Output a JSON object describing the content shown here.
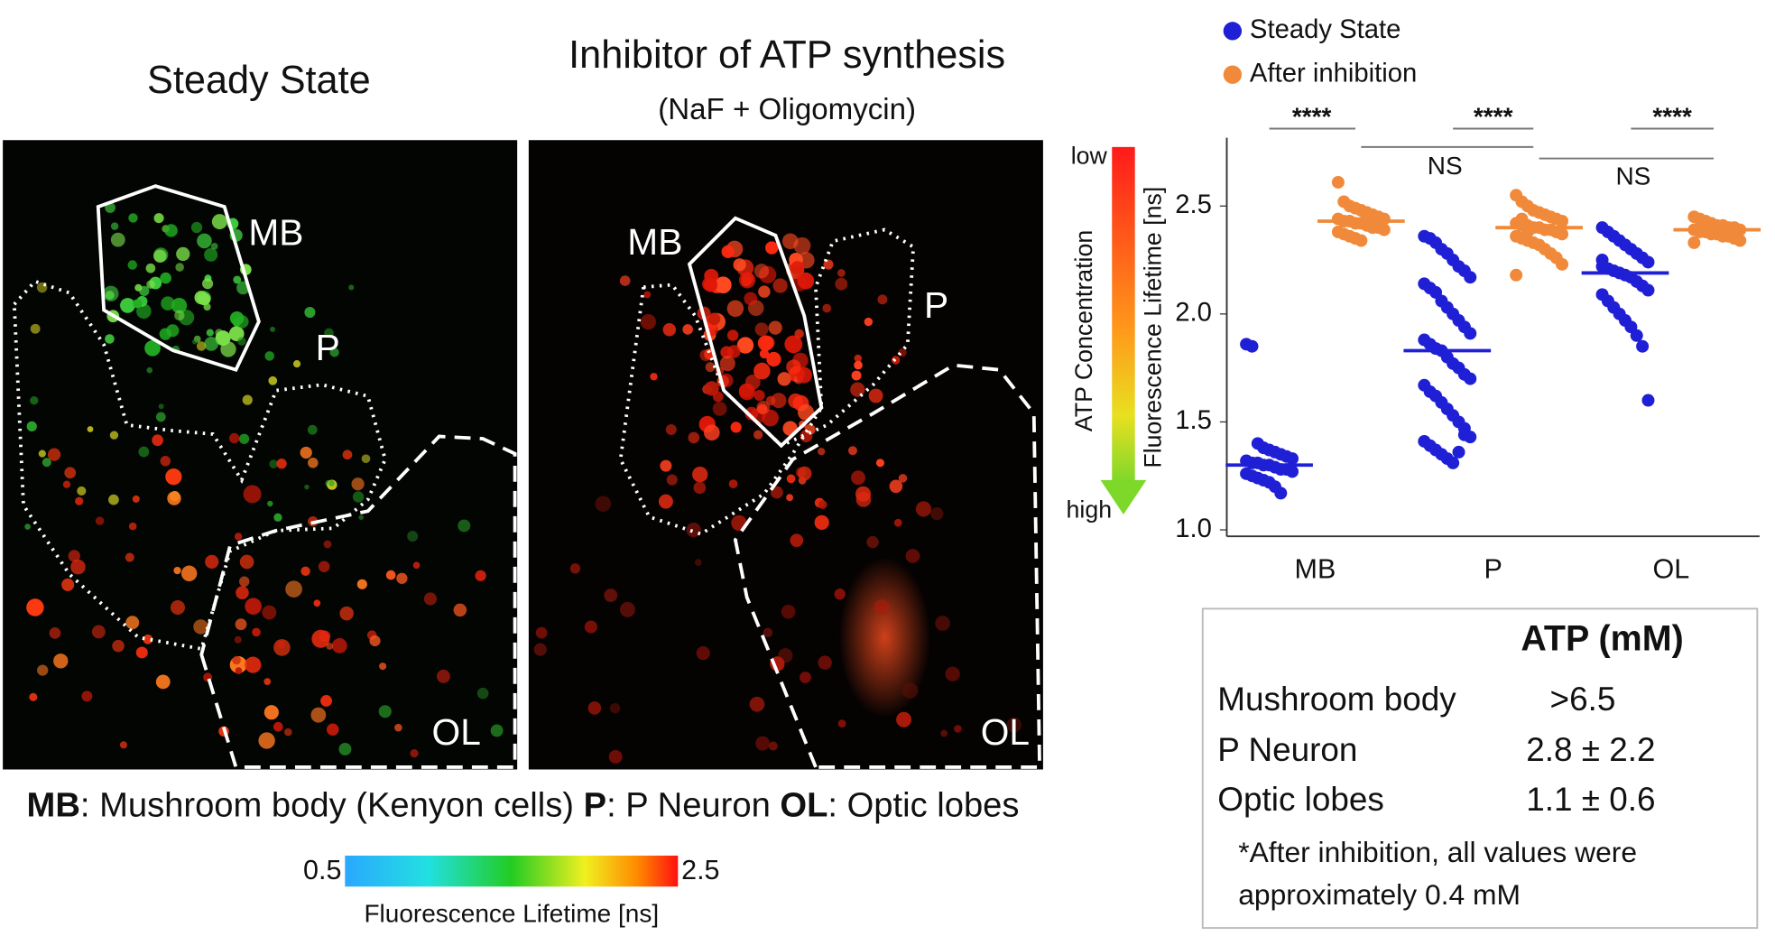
{
  "images": [
    {
      "title": "Steady State",
      "labels": [
        "MB",
        "P",
        "OL"
      ]
    },
    {
      "title": "Inhibitor of ATP synthesis",
      "subtitle": "(NaF + Oligomycin)",
      "labels": [
        "MB",
        "P",
        "OL"
      ]
    }
  ],
  "caption": [
    {
      "bold": "MB",
      "text": ": Mushroom body (Kenyon cells)"
    },
    {
      "bold": "P",
      "text": ": P Neuron"
    },
    {
      "bold": "OL",
      "text": ": Optic lobes"
    }
  ],
  "colorbar": {
    "min": 0.5,
    "max": 2.5,
    "label": "Fluorescence Lifetime [ns]"
  },
  "chart_data": {
    "type": "strip",
    "categories": [
      "MB",
      "P",
      "OL"
    ],
    "y_label": "Fluorescence Lifetime [ns]",
    "ylim": [
      0.97,
      2.8
    ],
    "yticks": [
      {
        "value": 1,
        "label": "1.0"
      },
      1.5,
      {
        "value": 2,
        "label": "2.0"
      },
      2.5
    ],
    "arrow": {
      "low": "low",
      "high": "high",
      "label": "ATP Concentration"
    },
    "annotations": [
      "****",
      "****",
      "****",
      "NS",
      "NS"
    ],
    "series": [
      {
        "name": "Steady State",
        "color": "#1f1fd6",
        "values": [
          [
            1.86,
            1.85,
            1.4,
            1.38,
            1.37,
            1.36,
            1.35,
            1.34,
            1.33,
            1.32,
            1.31,
            1.31,
            1.3,
            1.3,
            1.29,
            1.28,
            1.28,
            1.27,
            1.26,
            1.25,
            1.24,
            1.23,
            1.22,
            1.2,
            1.17
          ],
          [
            2.36,
            2.35,
            2.33,
            2.3,
            2.28,
            2.25,
            2.22,
            2.2,
            2.17,
            2.14,
            2.12,
            2.1,
            2.06,
            2.03,
            2.0,
            1.97,
            1.94,
            1.91,
            1.88,
            1.86,
            1.84,
            1.83,
            1.8,
            1.77,
            1.75,
            1.72,
            1.7,
            1.67,
            1.64,
            1.62,
            1.59,
            1.56,
            1.53,
            1.5,
            1.47,
            1.43,
            1.41,
            1.39,
            1.37,
            1.35,
            1.33,
            1.31,
            1.36,
            1.44
          ],
          [
            2.4,
            2.38,
            2.36,
            2.34,
            2.32,
            2.3,
            2.28,
            2.26,
            2.24,
            2.22,
            2.21,
            2.2,
            2.19,
            2.18,
            2.17,
            2.15,
            2.13,
            2.11,
            2.09,
            2.06,
            2.03,
            2.0,
            1.97,
            1.94,
            1.9,
            1.85,
            1.6,
            2.25
          ]
        ],
        "medians": [
          1.3,
          1.83,
          2.19
        ]
      },
      {
        "name": "After inhibition",
        "color": "#f08a3a",
        "values": [
          [
            2.61,
            2.52,
            2.5,
            2.49,
            2.48,
            2.47,
            2.46,
            2.45,
            2.44,
            2.44,
            2.43,
            2.43,
            2.42,
            2.42,
            2.41,
            2.4,
            2.4,
            2.39,
            2.38,
            2.37,
            2.36,
            2.35,
            2.34,
            2.45,
            2.41
          ],
          [
            2.55,
            2.52,
            2.5,
            2.48,
            2.47,
            2.46,
            2.45,
            2.44,
            2.43,
            2.42,
            2.41,
            2.41,
            2.4,
            2.4,
            2.39,
            2.39,
            2.38,
            2.37,
            2.36,
            2.35,
            2.34,
            2.33,
            2.32,
            2.3,
            2.28,
            2.26,
            2.23,
            2.18,
            2.44,
            2.38
          ],
          [
            2.45,
            2.44,
            2.43,
            2.42,
            2.41,
            2.41,
            2.4,
            2.4,
            2.39,
            2.39,
            2.38,
            2.38,
            2.37,
            2.37,
            2.36,
            2.36,
            2.35,
            2.34,
            2.33,
            2.4,
            2.42,
            2.38
          ]
        ],
        "medians": [
          2.43,
          2.4,
          2.39
        ]
      }
    ]
  },
  "table": {
    "header": "ATP (mM)",
    "rows": [
      [
        "Mushroom body",
        ">6.5"
      ],
      [
        "P Neuron",
        "2.8 ± 2.2"
      ],
      [
        "Optic lobes",
        "1.1 ± 0.6"
      ]
    ],
    "note": [
      "*After inhibition, all values were",
      "approximately 0.4 mM"
    ]
  }
}
